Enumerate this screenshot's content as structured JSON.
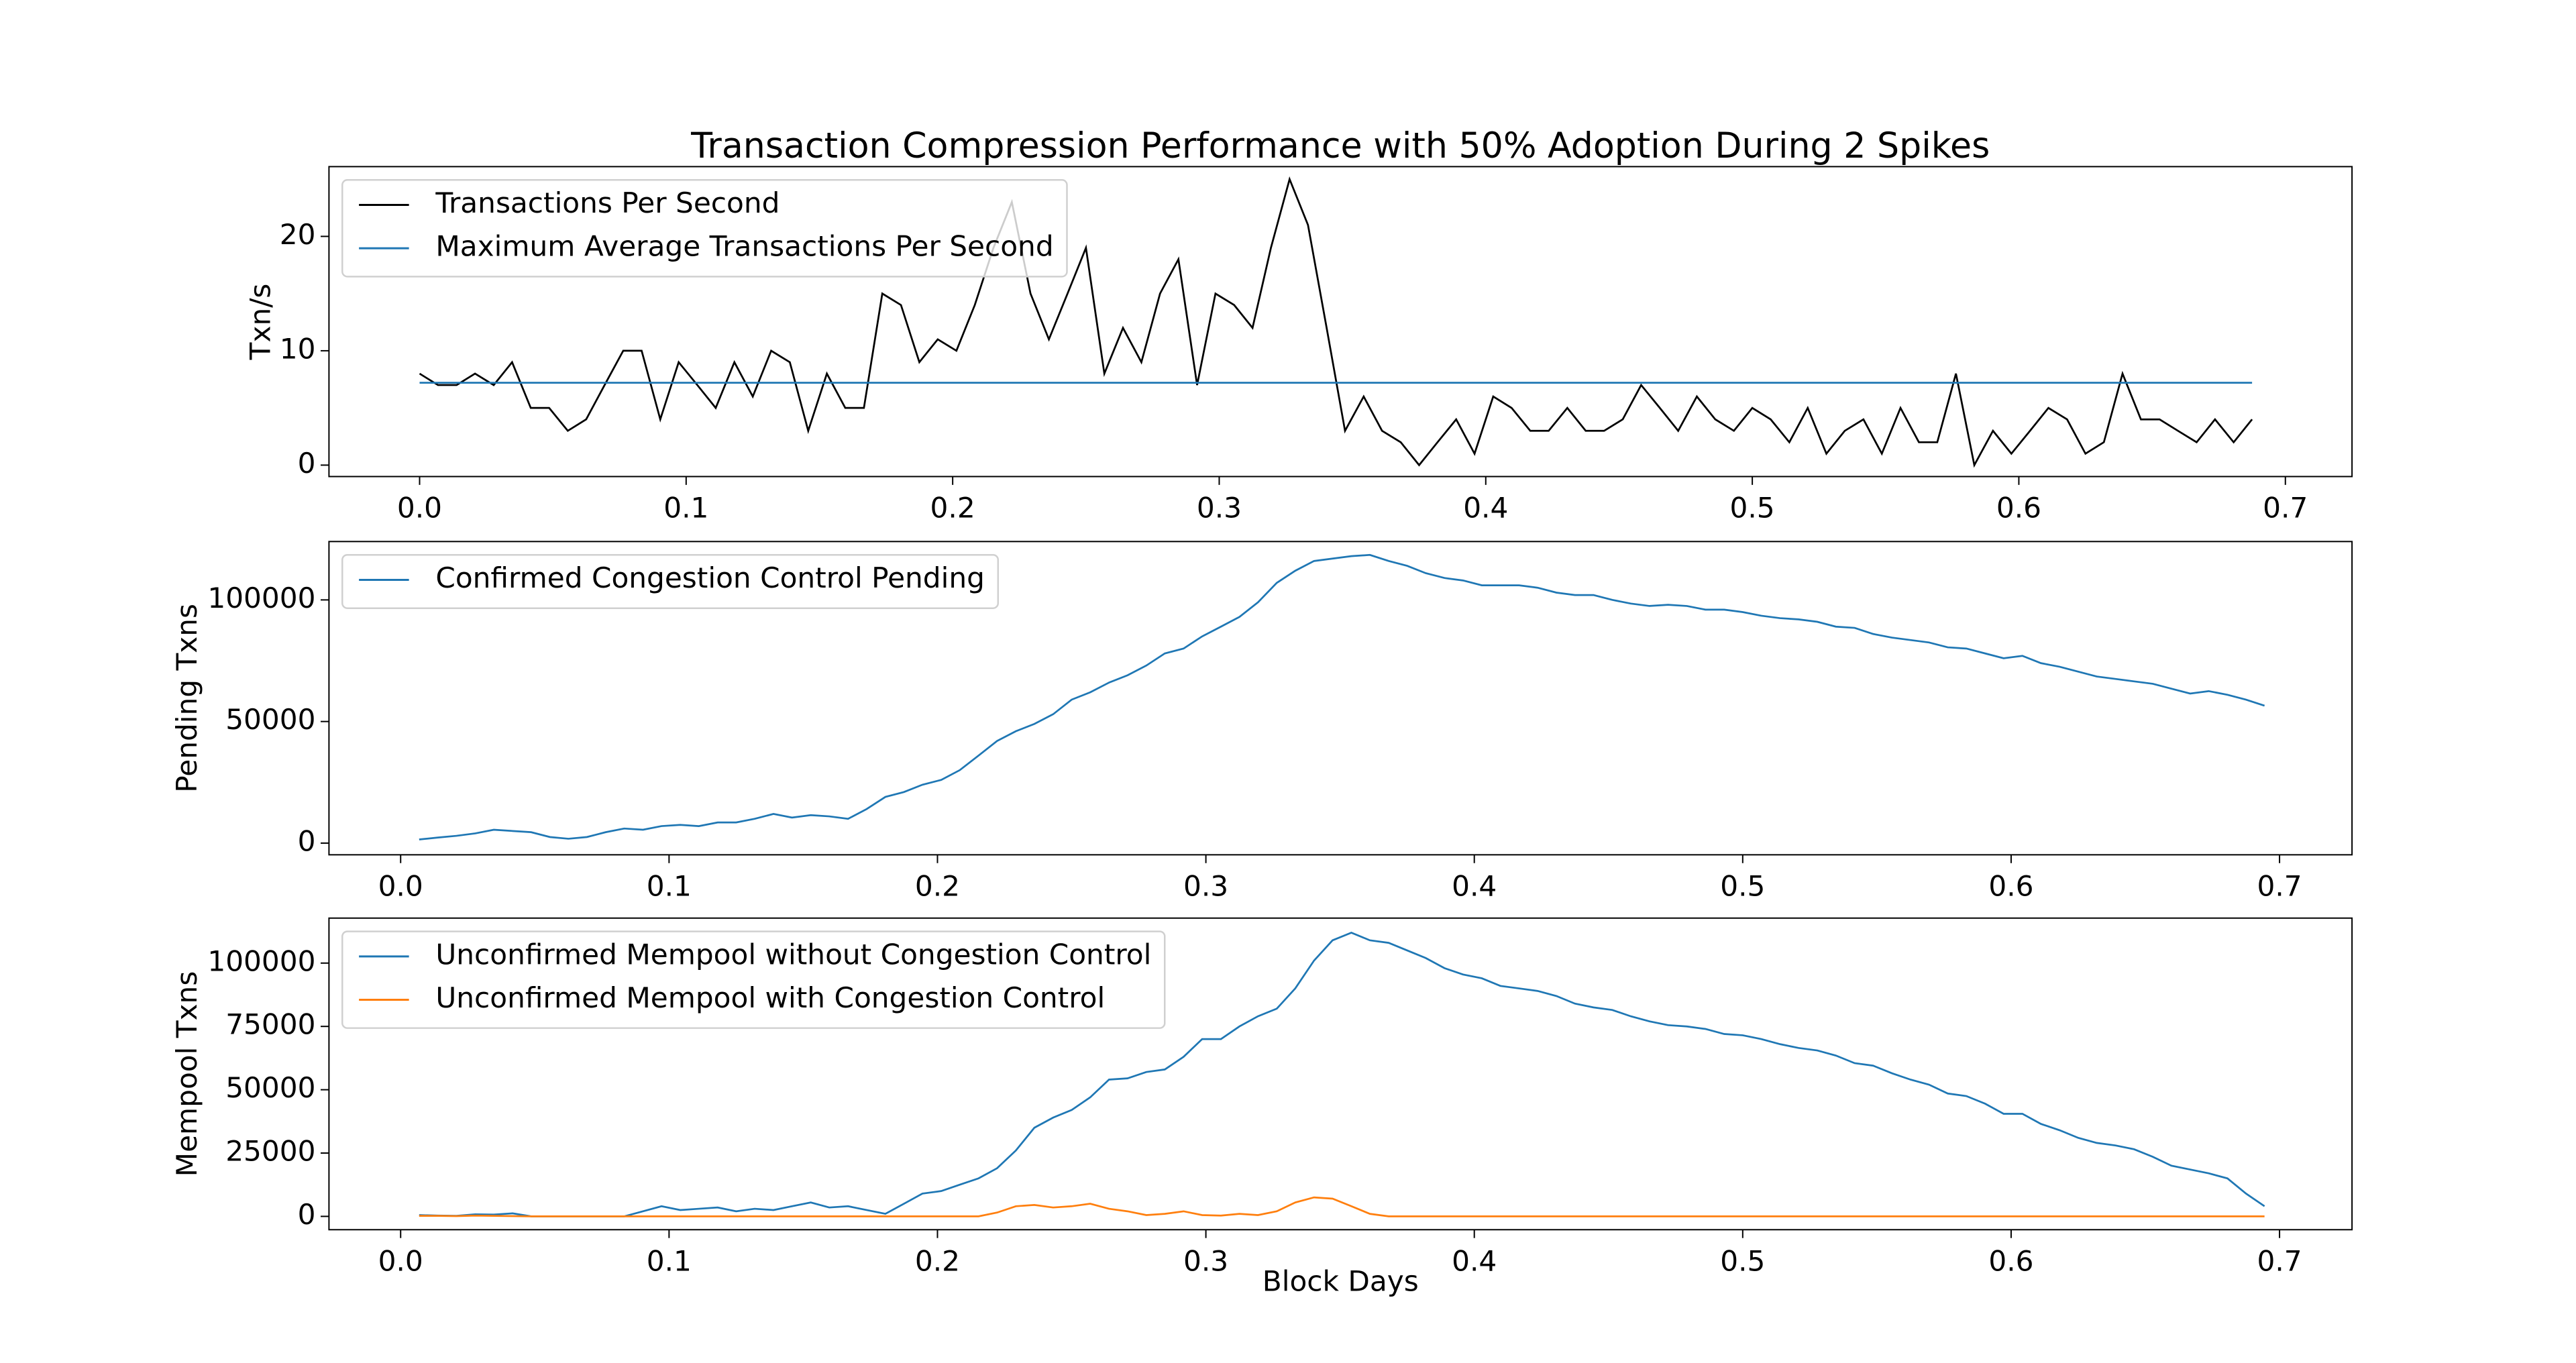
{
  "chart_data": [
    {
      "type": "line",
      "title": "Transaction Compression Performance with 50% Adoption During 2 Spikes",
      "ylabel": "Txn/s",
      "x": [
        0,
        0.0069,
        0.0139,
        0.0208,
        0.0278,
        0.0347,
        0.0417,
        0.0486,
        0.0556,
        0.0625,
        0.0694,
        0.0764,
        0.0833,
        0.0903,
        0.0972,
        0.1042,
        0.1111,
        0.1181,
        0.125,
        0.1319,
        0.1389,
        0.1458,
        0.1528,
        0.1597,
        0.1667,
        0.1736,
        0.1806,
        0.1875,
        0.1944,
        0.2014,
        0.2083,
        0.2153,
        0.2222,
        0.2292,
        0.2361,
        0.2431,
        0.25,
        0.2569,
        0.2639,
        0.2708,
        0.2778,
        0.2847,
        0.2917,
        0.2986,
        0.3056,
        0.3125,
        0.3194,
        0.3264,
        0.3333,
        0.3403,
        0.3472,
        0.3542,
        0.3611,
        0.3681,
        0.375,
        0.3819,
        0.3889,
        0.3958,
        0.4028,
        0.4097,
        0.4167,
        0.4236,
        0.4306,
        0.4375,
        0.4444,
        0.4514,
        0.4583,
        0.4653,
        0.4722,
        0.4792,
        0.4861,
        0.4931,
        0.5,
        0.5069,
        0.5139,
        0.5208,
        0.5278,
        0.5347,
        0.5417,
        0.5486,
        0.5556,
        0.5625,
        0.5694,
        0.5764,
        0.5833,
        0.5903,
        0.5972,
        0.6042,
        0.6111,
        0.6181,
        0.625,
        0.6319,
        0.6389,
        0.6458,
        0.6528,
        0.6597,
        0.6667,
        0.6736,
        0.6806,
        0.6875
      ],
      "series": [
        {
          "name": "Transactions Per Second",
          "color": "#000000",
          "values": [
            8,
            7,
            7,
            8,
            7,
            9,
            5,
            5,
            3,
            4,
            7,
            10,
            10,
            4,
            9,
            7,
            5,
            9,
            6,
            10,
            9,
            3,
            8,
            5,
            5,
            15,
            14,
            9,
            11,
            10,
            14,
            19,
            23,
            15,
            11,
            15,
            19,
            8,
            12,
            9,
            15,
            18,
            7,
            15,
            14,
            12,
            19,
            25,
            21,
            12,
            3,
            6,
            3,
            2,
            0,
            2,
            4,
            1,
            6,
            5,
            3,
            3,
            5,
            3,
            3,
            4,
            7,
            5,
            3,
            6,
            4,
            3,
            5,
            4,
            2,
            5,
            1,
            3,
            4,
            1,
            5,
            2,
            2,
            8,
            0,
            3,
            1,
            3,
            5,
            4,
            1,
            2,
            8,
            4,
            4,
            3,
            2,
            4,
            2,
            4
          ]
        },
        {
          "name": "Maximum Average Transactions Per Second",
          "color": "#1f77b4",
          "x": [
            0,
            0.6875
          ],
          "values": [
            7.2,
            7.2
          ]
        }
      ],
      "xlim": [
        -0.034,
        0.725
      ],
      "ylim": [
        -1.0,
        26.1
      ],
      "xticks": [
        {
          "value": 0,
          "label": "0.0"
        },
        0.1,
        0.2,
        0.3,
        0.4,
        0.5,
        0.6,
        0.7
      ],
      "yticks": [
        0,
        10,
        20
      ],
      "legend": "upper-left"
    },
    {
      "type": "line",
      "ylabel": "Pending Txns",
      "x": [
        0.0069,
        0.0139,
        0.0208,
        0.0278,
        0.0347,
        0.0417,
        0.0486,
        0.0556,
        0.0625,
        0.0694,
        0.0764,
        0.0833,
        0.0903,
        0.0972,
        0.1042,
        0.1111,
        0.1181,
        0.125,
        0.1319,
        0.1389,
        0.1458,
        0.1528,
        0.1597,
        0.1667,
        0.1736,
        0.1806,
        0.1875,
        0.1944,
        0.2014,
        0.2083,
        0.2153,
        0.2222,
        0.2292,
        0.2361,
        0.2431,
        0.25,
        0.2569,
        0.2639,
        0.2708,
        0.2778,
        0.2847,
        0.2917,
        0.2986,
        0.3056,
        0.3125,
        0.3194,
        0.3264,
        0.3333,
        0.3403,
        0.3472,
        0.3542,
        0.3611,
        0.3681,
        0.375,
        0.3819,
        0.3889,
        0.3958,
        0.4028,
        0.4097,
        0.4167,
        0.4236,
        0.4306,
        0.4375,
        0.4444,
        0.4514,
        0.4583,
        0.4653,
        0.4722,
        0.4792,
        0.4861,
        0.4931,
        0.5,
        0.5069,
        0.5139,
        0.5208,
        0.5278,
        0.5347,
        0.5417,
        0.5486,
        0.5556,
        0.5625,
        0.5694,
        0.5764,
        0.5833,
        0.5903,
        0.5972,
        0.6042,
        0.6111,
        0.6181,
        0.625,
        0.6319,
        0.6389,
        0.6458,
        0.6528,
        0.6597,
        0.6667,
        0.6736,
        0.6806,
        0.6875,
        0.6944
      ],
      "series": [
        {
          "name": "Confirmed Congestion Control Pending",
          "color": "#1f77b4",
          "values": [
            1500,
            2300,
            3000,
            4000,
            5500,
            5000,
            4500,
            2500,
            1800,
            2500,
            4500,
            6000,
            5500,
            7000,
            7500,
            7000,
            8500,
            8500,
            10000,
            12000,
            10500,
            11500,
            11000,
            10000,
            14000,
            19000,
            21000,
            24000,
            26000,
            30000,
            36000,
            42000,
            46000,
            49000,
            53000,
            59000,
            62000,
            66000,
            69000,
            73000,
            78000,
            80000,
            85000,
            89000,
            93000,
            99000,
            107000,
            112000,
            116000,
            117000,
            118000,
            118500,
            116000,
            114000,
            111000,
            109000,
            108000,
            106000,
            106000,
            106000,
            105000,
            103000,
            102000,
            102000,
            100000,
            98500,
            97500,
            98000,
            97500,
            96000,
            96000,
            95000,
            93500,
            92500,
            92000,
            91000,
            89000,
            88500,
            86000,
            84500,
            83500,
            82500,
            80500,
            80000,
            78000,
            76000,
            77000,
            74000,
            72500,
            70500,
            68500,
            67500,
            66500,
            65500,
            63500,
            61500,
            62500,
            61000,
            59000,
            56500
          ]
        }
      ],
      "xlim": [
        -0.0267,
        0.727
      ],
      "ylim": [
        -4800,
        124000
      ],
      "xticks": [
        {
          "value": 0,
          "label": "0.0"
        },
        0.1,
        0.2,
        0.3,
        0.4,
        0.5,
        0.6,
        0.7
      ],
      "yticks": [
        0,
        50000,
        100000
      ],
      "legend": "upper-left"
    },
    {
      "type": "line",
      "ylabel": "Mempool Txns",
      "xlabel": "Block Days",
      "x": [
        0.0069,
        0.0139,
        0.0208,
        0.0278,
        0.0347,
        0.0417,
        0.0486,
        0.0556,
        0.0625,
        0.0694,
        0.0764,
        0.0833,
        0.0903,
        0.0972,
        0.1042,
        0.1111,
        0.1181,
        0.125,
        0.1319,
        0.1389,
        0.1458,
        0.1528,
        0.1597,
        0.1667,
        0.1736,
        0.1806,
        0.1875,
        0.1944,
        0.2014,
        0.2083,
        0.2153,
        0.2222,
        0.2292,
        0.2361,
        0.2431,
        0.25,
        0.2569,
        0.2639,
        0.2708,
        0.2778,
        0.2847,
        0.2917,
        0.2986,
        0.3056,
        0.3125,
        0.3194,
        0.3264,
        0.3333,
        0.3403,
        0.3472,
        0.3542,
        0.3611,
        0.3681,
        0.375,
        0.3819,
        0.3889,
        0.3958,
        0.4028,
        0.4097,
        0.4167,
        0.4236,
        0.4306,
        0.4375,
        0.4444,
        0.4514,
        0.4583,
        0.4653,
        0.4722,
        0.4792,
        0.4861,
        0.4931,
        0.5,
        0.5069,
        0.5139,
        0.5208,
        0.5278,
        0.5347,
        0.5417,
        0.5486,
        0.5556,
        0.5625,
        0.5694,
        0.5764,
        0.5833,
        0.5903,
        0.5972,
        0.6042,
        0.6111,
        0.6181,
        0.625,
        0.6319,
        0.6389,
        0.6458,
        0.6528,
        0.6597,
        0.6667,
        0.6736,
        0.6806,
        0.6875,
        0.6944
      ],
      "series": [
        {
          "name": "Unconfirmed Mempool without Congestion Control",
          "color": "#1f77b4",
          "values": [
            500,
            300,
            200,
            800,
            700,
            1200,
            0,
            0,
            0,
            0,
            0,
            0,
            2000,
            4000,
            2500,
            3000,
            3500,
            2000,
            3000,
            2500,
            4000,
            5500,
            3500,
            4000,
            2500,
            1000,
            5000,
            9000,
            10000,
            12500,
            15000,
            19000,
            26000,
            35000,
            39000,
            42000,
            47000,
            54000,
            54500,
            57000,
            58000,
            63000,
            70000,
            70000,
            75000,
            79000,
            82000,
            90000,
            101000,
            109000,
            112000,
            109000,
            108000,
            105000,
            102000,
            98000,
            95500,
            94000,
            91000,
            90000,
            89000,
            87000,
            84000,
            82500,
            81500,
            79000,
            77000,
            75500,
            75000,
            74000,
            72000,
            71500,
            70000,
            68000,
            66500,
            65500,
            63500,
            60500,
            59500,
            56500,
            54000,
            52000,
            48500,
            47500,
            44500,
            40500,
            40500,
            36500,
            34000,
            31000,
            29000,
            28000,
            26500,
            23500,
            20000,
            18500,
            17000,
            15000,
            9000,
            4000
          ]
        },
        {
          "name": "Unconfirmed Mempool with Congestion Control",
          "color": "#ff7f0e",
          "values": [
            200,
            200,
            100,
            300,
            200,
            100,
            0,
            0,
            0,
            0,
            0,
            0,
            0,
            0,
            0,
            0,
            0,
            0,
            0,
            0,
            0,
            0,
            0,
            0,
            0,
            0,
            0,
            0,
            0,
            0,
            0,
            1500,
            4000,
            4500,
            3500,
            4000,
            5000,
            3000,
            2000,
            500,
            1000,
            2000,
            500,
            300,
            1000,
            500,
            2000,
            5500,
            7500,
            7000,
            4000,
            1000,
            0,
            0,
            0,
            0,
            0,
            0,
            0,
            0,
            0,
            0,
            0,
            0,
            0,
            0,
            0,
            0,
            0,
            0,
            0,
            0,
            0,
            0,
            0,
            0,
            0,
            0,
            0,
            0,
            0,
            0,
            0,
            0,
            0,
            0,
            0,
            0,
            0,
            0,
            0,
            0,
            0,
            0,
            0,
            0,
            0,
            0,
            0,
            0
          ]
        }
      ],
      "xlim": [
        -0.0267,
        0.727
      ],
      "ylim": [
        -5260,
        117760
      ],
      "xticks": [
        {
          "value": 0,
          "label": "0.0"
        },
        0.1,
        0.2,
        0.3,
        0.4,
        0.5,
        0.6,
        0.7
      ],
      "yticks": [
        0,
        25000,
        50000,
        75000,
        100000
      ],
      "legend": "upper-left"
    }
  ]
}
